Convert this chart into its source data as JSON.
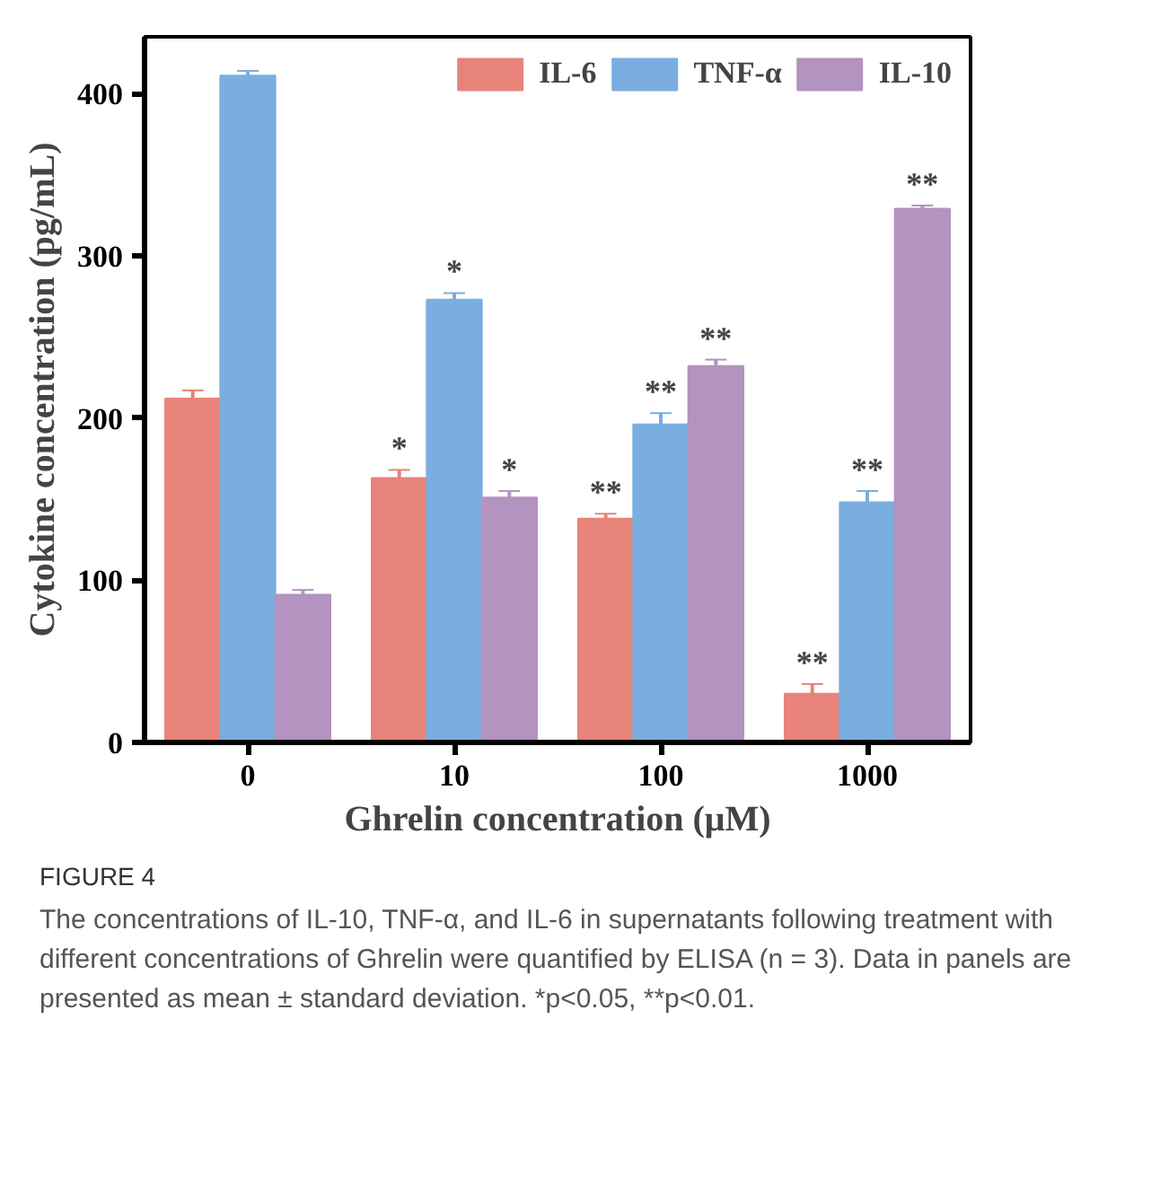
{
  "chart_data": {
    "type": "bar",
    "xlabel": "Ghrelin concentration (μM)",
    "ylabel": "Cytokine concentration (pg/mL)",
    "categories": [
      "0",
      "10",
      "100",
      "1000"
    ],
    "series": [
      {
        "name": "IL-6",
        "color": "#e8837a",
        "values": [
          212,
          163,
          138,
          30
        ],
        "errors": [
          5,
          5,
          3,
          6
        ],
        "value_labels": [
          null,
          "*",
          "**",
          "**"
        ]
      },
      {
        "name": "TNF-α",
        "color": "#7aaee0",
        "values": [
          411,
          273,
          196,
          148
        ],
        "errors": [
          3,
          4,
          7,
          7
        ],
        "value_labels": [
          null,
          "*",
          "**",
          "**"
        ]
      },
      {
        "name": "IL-10",
        "color": "#b393bf",
        "values": [
          91,
          151,
          232,
          329
        ],
        "errors": [
          3,
          4,
          4,
          2
        ],
        "value_labels": [
          null,
          "*",
          "**",
          "**"
        ]
      }
    ],
    "ylim": [
      0,
      435
    ],
    "yticks": [
      0,
      100,
      200,
      300,
      400
    ],
    "grid": false,
    "legend": "top right",
    "annotations": [
      "FIGURE 4",
      "The concentrations of IL-10, TNF-α, and IL-6 in supernatants following treatment with different concentrations of Ghrelin were quantified by ELISA (n = 3). Data in panels are presented as mean ± standard deviation. *p<0.05, **p<0.01."
    ]
  }
}
